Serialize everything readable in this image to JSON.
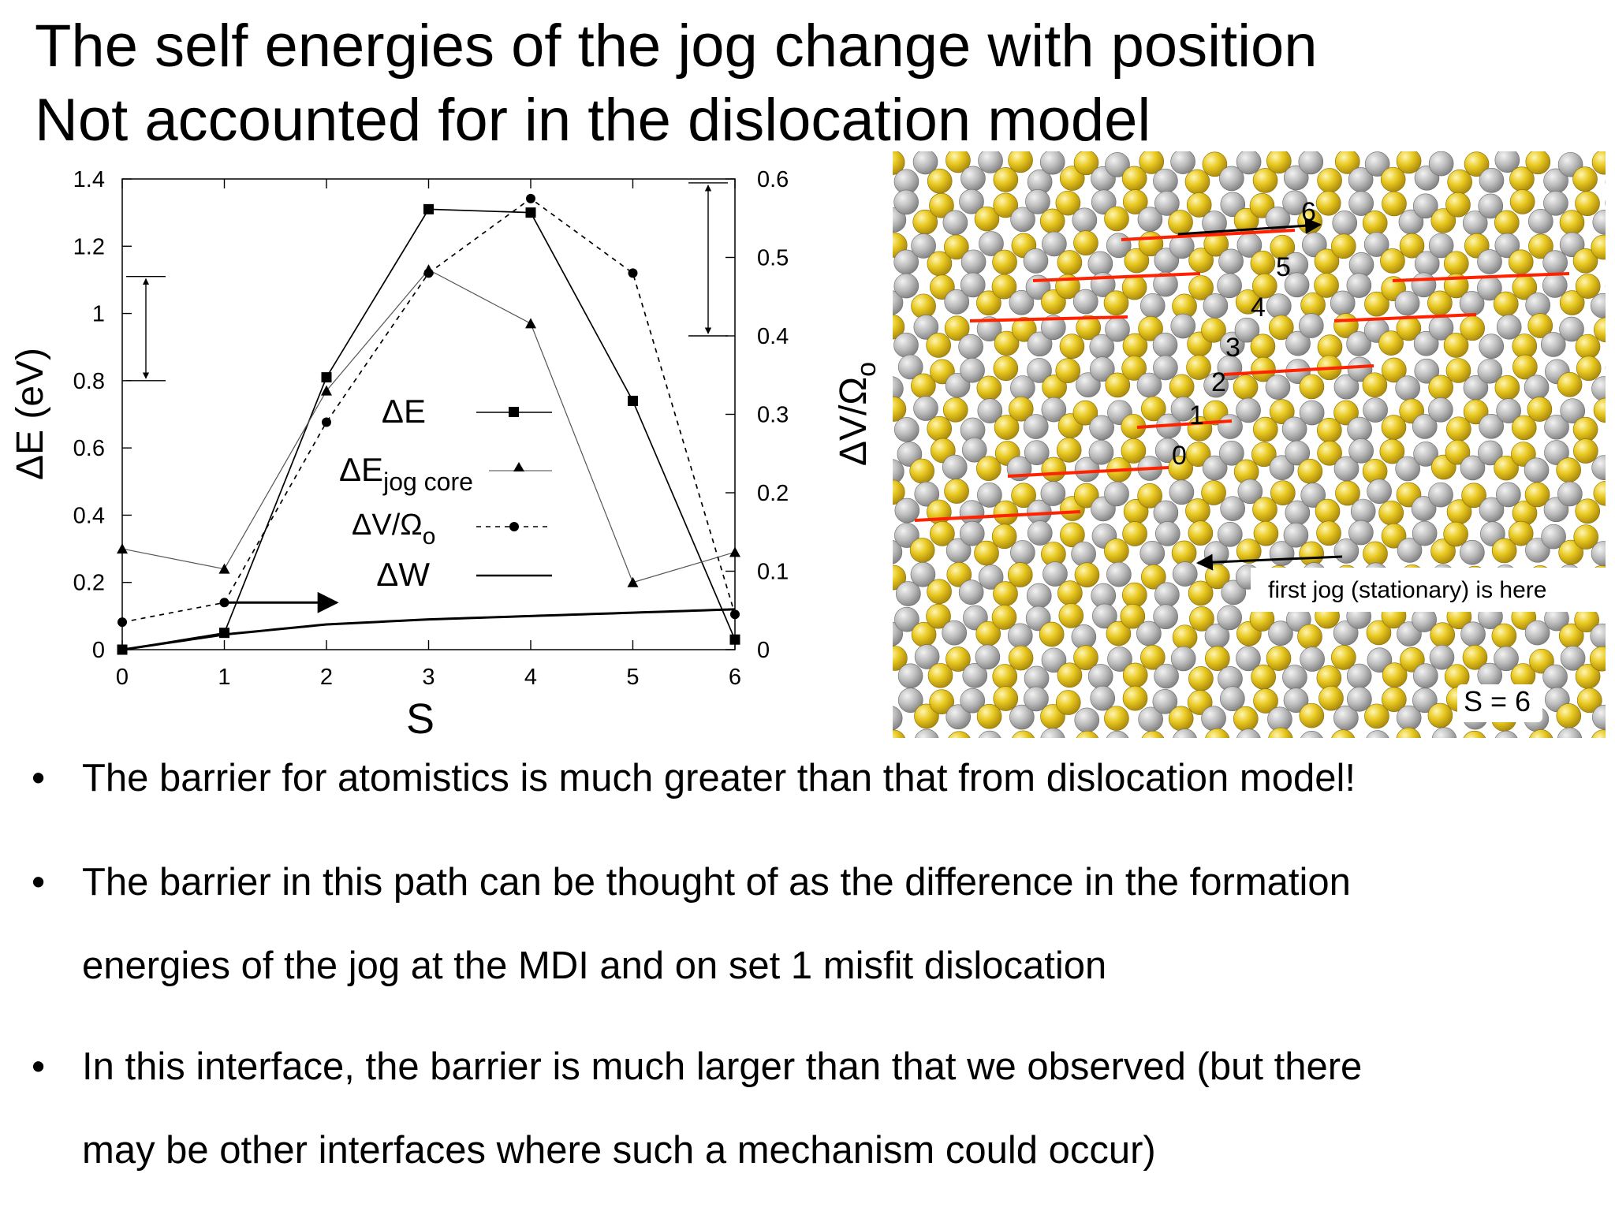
{
  "title": {
    "line1": "The self energies of the jog change with position",
    "line2": "Not accounted for in the dislocation model"
  },
  "chart_data": {
    "type": "line",
    "xlabel": "S",
    "ylabel": "ΔE (eV)",
    "ylabel_right": "ΔV/Ω",
    "ylabel_right_sub": "o",
    "x": [
      0,
      1,
      2,
      3,
      4,
      5,
      6
    ],
    "xlim": [
      0,
      6
    ],
    "ylim": [
      0,
      1.4
    ],
    "ylim_right": [
      0,
      0.6
    ],
    "x_ticks": [
      "0",
      "1",
      "2",
      "3",
      "4",
      "5",
      "6"
    ],
    "y_ticks": [
      "0",
      "0.2",
      "0.4",
      "0.6",
      "0.8",
      "1",
      "1.2",
      "1.4"
    ],
    "y_right_ticks": [
      "0",
      "0.1",
      "0.2",
      "0.3",
      "0.4",
      "0.5",
      "0.6"
    ],
    "series": [
      {
        "name": "ΔE",
        "axis": "left",
        "marker": "square",
        "dash": false,
        "values": [
          0.0,
          0.05,
          0.81,
          1.31,
          1.3,
          0.74,
          0.03
        ]
      },
      {
        "name": "ΔE",
        "name_sub": "jog core",
        "axis": "left",
        "marker": "triangle",
        "dash": false,
        "thin": true,
        "values": [
          0.3,
          0.24,
          0.77,
          1.13,
          0.97,
          0.2,
          0.29
        ]
      },
      {
        "name": "ΔV/Ω",
        "name_sub": "o",
        "axis": "right",
        "marker": "circle",
        "dash": true,
        "values": [
          0.035,
          0.06,
          0.29,
          0.48,
          0.575,
          0.48,
          0.045
        ]
      },
      {
        "name": "ΔW",
        "axis": "left",
        "marker": "none",
        "dash": false,
        "thick": true,
        "values": [
          0.0,
          0.045,
          0.075,
          0.09,
          0.1,
          0.11,
          0.12
        ]
      }
    ],
    "annotations": {
      "left_range": [
        0.8,
        1.11
      ],
      "right_range": [
        0.4,
        0.595
      ],
      "arrow_from_x": 1,
      "arrow_to_x": 2.1,
      "arrow_y": 0.14
    }
  },
  "atomistic_image": {
    "jog_labels": [
      "0",
      "1",
      "2",
      "3",
      "4",
      "5",
      "6"
    ],
    "caption": "first jog (stationary) is here",
    "state_label": "S = 6",
    "colors": {
      "atom_gold": "#e4c11e",
      "atom_gray": "#b5b5b5",
      "misfit_line": "#ff2200"
    }
  },
  "bullets": [
    {
      "line1": "The barrier for atomistics is much greater than that from dislocation model!"
    },
    {
      "line1": "The barrier in this path can be thought of as the difference in the formation",
      "line2": "energies of the jog at the MDI and on set 1 misfit dislocation"
    },
    {
      "line1": "In this interface, the barrier is much larger than that we observed (but there",
      "line2": "may be other interfaces where such a mechanism could occur)"
    }
  ],
  "bullet_symbol": "•"
}
